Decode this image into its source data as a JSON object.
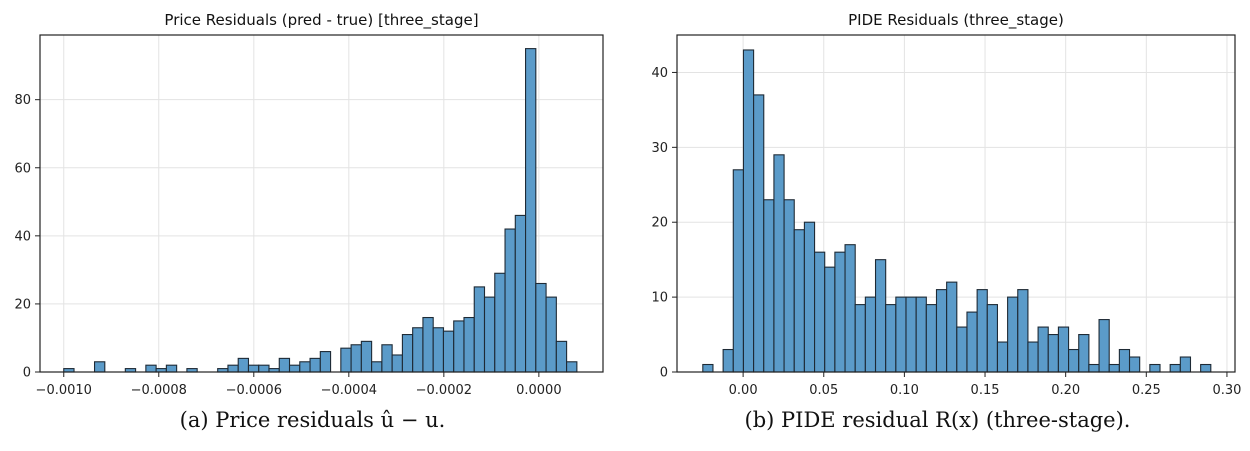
{
  "chart_data": [
    {
      "type": "bar",
      "title": "Price Residuals (pred - true) [three_stage]",
      "xlabel": "",
      "ylabel": "",
      "xlim": [
        -0.00105,
        0.000135
      ],
      "ylim": [
        0,
        99
      ],
      "xticks": [
        -0.001,
        -0.0008,
        -0.0006,
        -0.0004,
        -0.0002,
        0.0
      ],
      "xtick_labels": [
        "−0.0010",
        "−0.0008",
        "−0.0006",
        "−0.0004",
        "−0.0002",
        "0.0000"
      ],
      "yticks": [
        0,
        20,
        40,
        60,
        80
      ],
      "ytick_labels": [
        "0",
        "20",
        "40",
        "60",
        "80"
      ],
      "grid": true,
      "color": "#5b9bc9",
      "bins": {
        "start": -0.001,
        "width": 2.16e-05,
        "counts": [
          1,
          0,
          0,
          3,
          0,
          0,
          1,
          0,
          2,
          1,
          2,
          0,
          1,
          0,
          0,
          1,
          2,
          4,
          2,
          2,
          1,
          4,
          2,
          3,
          4,
          6,
          0,
          7,
          8,
          9,
          3,
          8,
          5,
          11,
          13,
          16,
          13,
          12,
          15,
          16,
          25,
          22,
          29,
          42,
          46,
          95,
          26,
          22,
          9,
          3
        ]
      },
      "caption_label": "(a)",
      "caption_text": "Price residuals û − u."
    },
    {
      "type": "bar",
      "title": "PIDE Residuals (three_stage)",
      "xlabel": "",
      "ylabel": "",
      "xlim": [
        -0.041,
        0.305
      ],
      "ylim": [
        0,
        45
      ],
      "xticks": [
        0.0,
        0.05,
        0.1,
        0.15,
        0.2,
        0.25,
        0.3
      ],
      "xtick_labels": [
        "0.00",
        "0.05",
        "0.10",
        "0.15",
        "0.20",
        "0.25",
        "0.30"
      ],
      "yticks": [
        0,
        10,
        20,
        30,
        40
      ],
      "ytick_labels": [
        "0",
        "10",
        "20",
        "30",
        "40"
      ],
      "grid": true,
      "color": "#5b9bc9",
      "bins": {
        "start": -0.025,
        "width": 0.0063,
        "counts": [
          1,
          0,
          3,
          27,
          43,
          37,
          23,
          29,
          23,
          19,
          20,
          16,
          14,
          16,
          17,
          9,
          10,
          15,
          9,
          10,
          10,
          10,
          9,
          11,
          12,
          6,
          8,
          11,
          9,
          4,
          10,
          11,
          4,
          6,
          5,
          6,
          3,
          5,
          1,
          7,
          1,
          3,
          2,
          0,
          1,
          0,
          1,
          2,
          0,
          1
        ]
      },
      "caption_label": "(b)",
      "caption_text": "PIDE residual R(x) (three-stage)."
    }
  ]
}
